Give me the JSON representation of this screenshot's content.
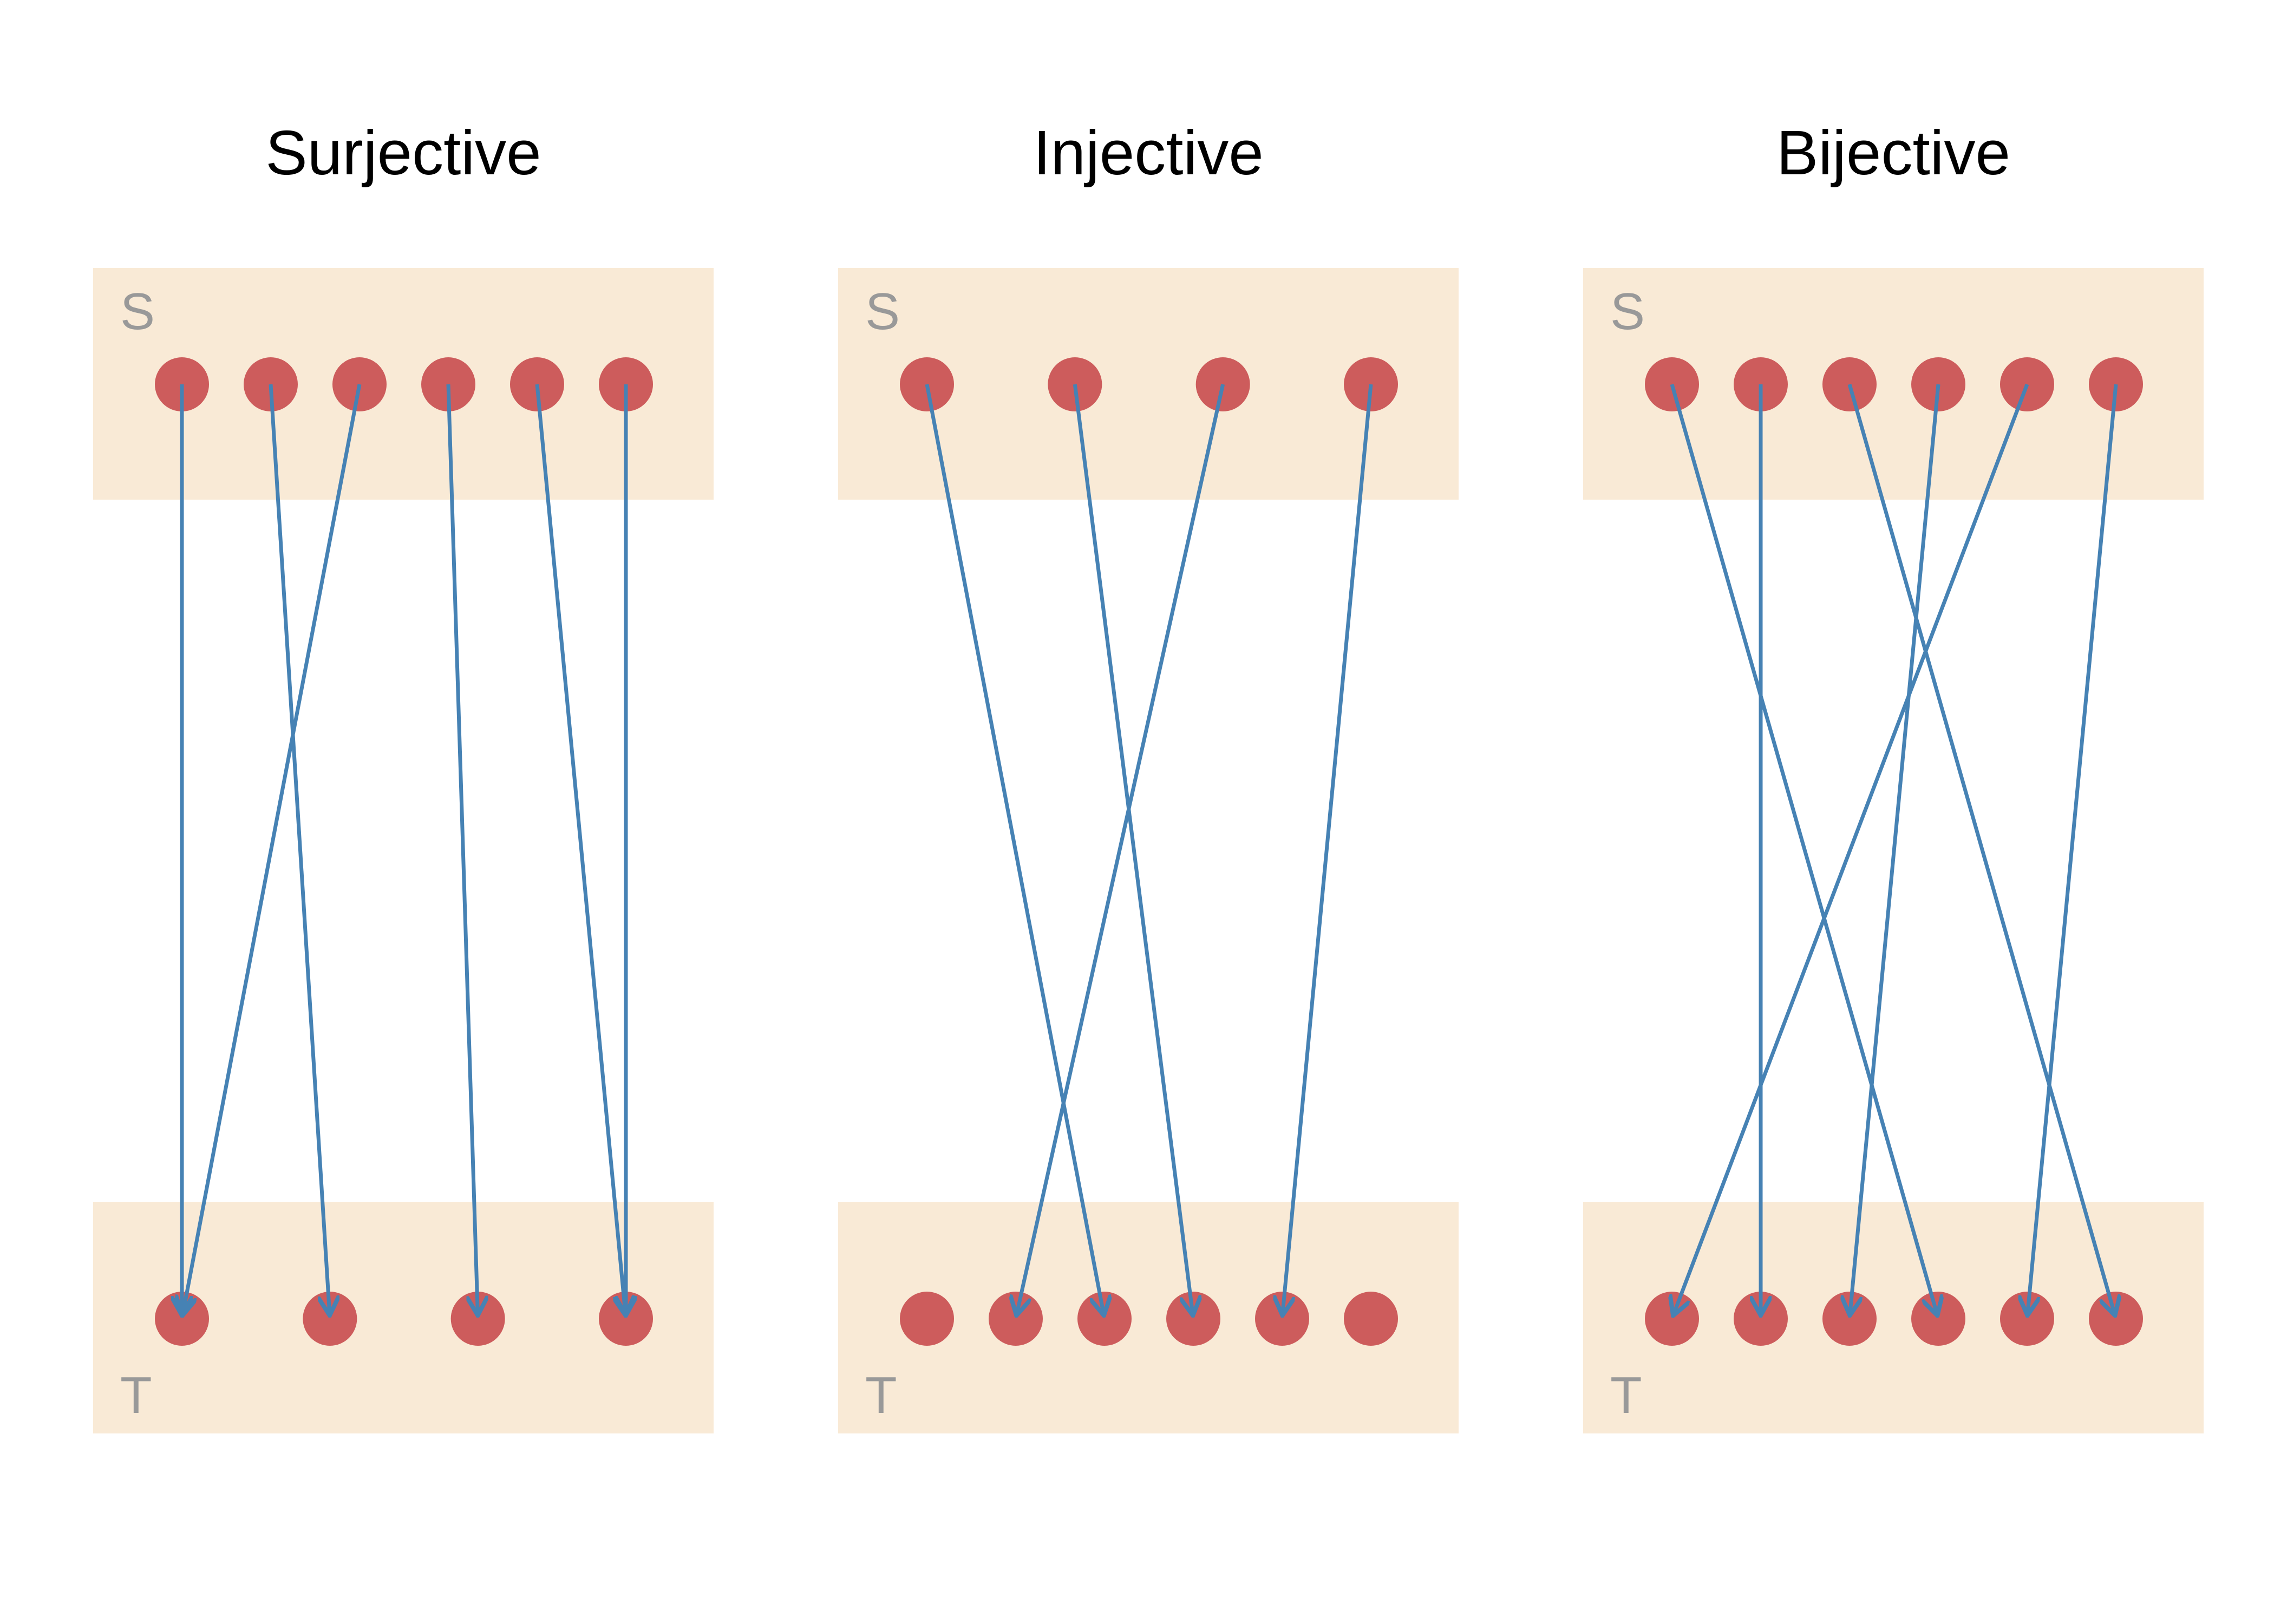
{
  "colors": {
    "box": "#f9ead6",
    "node": "#cd5c5c",
    "arrow": "#4682b4",
    "set_label": "#999999",
    "title": "#000000"
  },
  "panels": [
    {
      "title": "Surjective",
      "source_label": "S",
      "target_label": "T",
      "source_count": 6,
      "target_count": 4,
      "mapping": [
        0,
        1,
        0,
        2,
        3,
        3
      ]
    },
    {
      "title": "Injective",
      "source_label": "S",
      "target_label": "T",
      "source_count": 4,
      "target_count": 6,
      "mapping": [
        2,
        3,
        1,
        4
      ]
    },
    {
      "title": "Bijective",
      "source_label": "S",
      "target_label": "T",
      "source_count": 6,
      "target_count": 6,
      "mapping": [
        3,
        1,
        5,
        2,
        0,
        4
      ]
    }
  ]
}
